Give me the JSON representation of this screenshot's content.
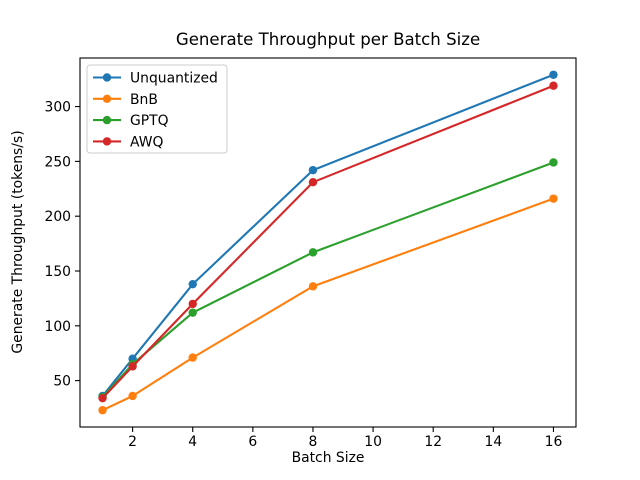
{
  "figure": {
    "background": "#ffffff"
  },
  "chart_data": {
    "type": "line",
    "title": "Generate Throughput per Batch Size",
    "xlabel": "Batch Size",
    "ylabel": "Generate Throughput (tokens/s)",
    "x": [
      1,
      2,
      4,
      8,
      16
    ],
    "series": [
      {
        "name": "Unquantized",
        "color": "#1f77b4",
        "values": [
          36,
          70,
          138,
          242,
          329
        ]
      },
      {
        "name": "BnB",
        "color": "#ff7f0e",
        "values": [
          23,
          36,
          71,
          136,
          216
        ]
      },
      {
        "name": "GPTQ",
        "color": "#2ca02c",
        "values": [
          35,
          65,
          112,
          167,
          249
        ]
      },
      {
        "name": "AWQ",
        "color": "#d62728",
        "values": [
          34,
          63,
          120,
          231,
          319
        ]
      }
    ],
    "xticks": [
      2,
      4,
      6,
      8,
      10,
      12,
      14,
      16
    ],
    "yticks": [
      50,
      100,
      150,
      200,
      250,
      300
    ],
    "xlim": [
      0.25,
      16.75
    ],
    "ylim": [
      7.7,
      344.3
    ],
    "grid": false,
    "marker": "o",
    "legend_position": "upper left",
    "legend_edge_color": "#cccccc",
    "axis_color": "#000000"
  }
}
